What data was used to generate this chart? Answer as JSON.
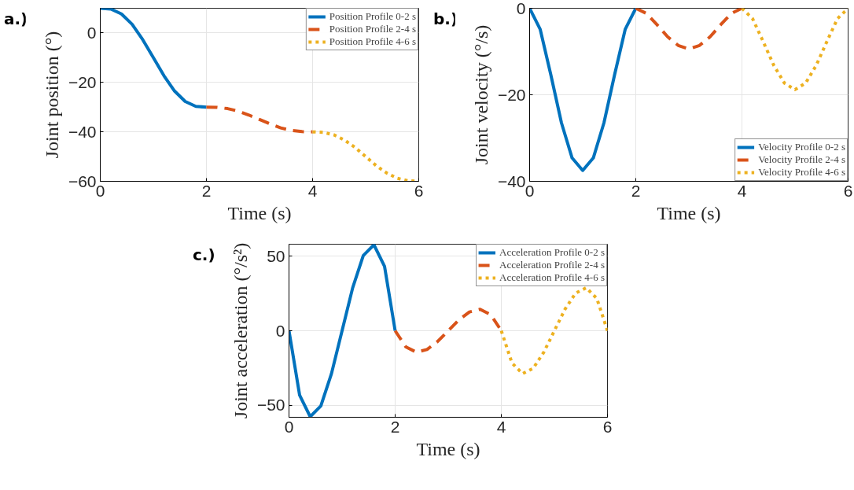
{
  "chart_data": [
    {
      "type": "line",
      "xlabel": "Time (s)",
      "ylabel": "Joint position (°)",
      "annotations": [
        "a.)"
      ],
      "xlim": [
        0,
        6
      ],
      "xticks": [
        0,
        2,
        4,
        6
      ],
      "ylim": [
        -60,
        10
      ],
      "yticks": [
        -60,
        -40,
        -20,
        0
      ],
      "grid": true,
      "legend": "top right",
      "series": [
        {
          "name": "Position Profile 0-2 s",
          "color": "#0072bd",
          "line_style": "solid",
          "x": [
            0,
            0.2,
            0.4,
            0.6,
            0.8,
            1.0,
            1.2,
            1.4,
            1.6,
            1.8,
            2.0
          ],
          "values": [
            10,
            9.7,
            7.7,
            3.5,
            -2.7,
            -10,
            -17.3,
            -23.5,
            -27.7,
            -29.7,
            -30
          ]
        },
        {
          "name": "Position Profile 2-4 s",
          "color": "#d95319",
          "line_style": "dashed",
          "x": [
            2.0,
            2.2,
            2.4,
            2.6,
            2.8,
            3.0,
            3.2,
            3.4,
            3.6,
            3.8,
            4.0
          ],
          "values": [
            -30,
            -30.1,
            -30.6,
            -31.6,
            -33.2,
            -35,
            -36.8,
            -38.4,
            -39.4,
            -39.9,
            -40
          ]
        },
        {
          "name": "Position Profile 4-6 s",
          "color": "#edb120",
          "line_style": "dotted",
          "x": [
            4.0,
            4.2,
            4.4,
            4.6,
            4.8,
            5.0,
            5.2,
            5.4,
            5.6,
            5.8,
            6.0
          ],
          "values": [
            -40,
            -40.2,
            -41.2,
            -43.3,
            -46.3,
            -50,
            -53.7,
            -56.7,
            -58.8,
            -59.8,
            -60
          ]
        }
      ]
    },
    {
      "type": "line",
      "xlabel": "Time (s)",
      "ylabel": "Joint velocity (°/s)",
      "annotations": [
        "b.)"
      ],
      "xlim": [
        0,
        6
      ],
      "xticks": [
        0,
        2,
        4,
        6
      ],
      "ylim": [
        -40,
        0
      ],
      "yticks": [
        -40,
        -20,
        0
      ],
      "grid": true,
      "legend": "bottom right",
      "series": [
        {
          "name": "Velocity Profile 0-2 s",
          "color": "#0072bd",
          "line_style": "solid",
          "x": [
            0,
            0.2,
            0.4,
            0.6,
            0.8,
            1.0,
            1.2,
            1.4,
            1.6,
            1.8,
            2.0
          ],
          "values": [
            0,
            -4.9,
            -15.4,
            -26.5,
            -34.6,
            -37.5,
            -34.6,
            -26.5,
            -15.4,
            -4.9,
            0
          ]
        },
        {
          "name": "Velocity Profile 2-4 s",
          "color": "#d95319",
          "line_style": "dashed",
          "x": [
            2.0,
            2.2,
            2.4,
            2.6,
            2.8,
            3.0,
            3.2,
            3.4,
            3.6,
            3.8,
            4.0
          ],
          "values": [
            0,
            -1.2,
            -3.8,
            -6.6,
            -8.6,
            -9.4,
            -8.6,
            -6.6,
            -3.8,
            -1.2,
            0
          ]
        },
        {
          "name": "Velocity Profile 4-6 s",
          "color": "#edb120",
          "line_style": "dotted",
          "x": [
            4.0,
            4.2,
            4.4,
            4.6,
            4.8,
            5.0,
            5.2,
            5.4,
            5.6,
            5.8,
            6.0
          ],
          "values": [
            0,
            -2.4,
            -7.7,
            -13.2,
            -17.3,
            -18.8,
            -17.3,
            -13.2,
            -7.7,
            -2.4,
            0
          ]
        }
      ]
    },
    {
      "type": "line",
      "xlabel": "Time (s)",
      "ylabel": "Joint acceleration (°/s²)",
      "annotations": [
        "c.)"
      ],
      "xlim": [
        0,
        6
      ],
      "xticks": [
        0,
        2,
        4,
        6
      ],
      "ylim": [
        -58,
        58
      ],
      "yticks": [
        -50,
        0,
        50
      ],
      "grid": true,
      "legend": "top right",
      "series": [
        {
          "name": "Acceleration Profile 0-2 s",
          "color": "#0072bd",
          "line_style": "solid",
          "x": [
            0,
            0.2,
            0.4,
            0.6,
            0.8,
            1.0,
            1.2,
            1.4,
            1.6,
            1.8,
            2.0
          ],
          "values": [
            0,
            -43.2,
            -57.6,
            -50.4,
            -28.8,
            0,
            28.8,
            50.4,
            57.6,
            43.2,
            0
          ]
        },
        {
          "name": "Acceleration Profile 2-4 s",
          "color": "#d95319",
          "line_style": "dashed",
          "x": [
            2.0,
            2.2,
            2.4,
            2.6,
            2.8,
            3.0,
            3.2,
            3.4,
            3.6,
            3.8,
            4.0
          ],
          "values": [
            0,
            -10.8,
            -14.4,
            -12.6,
            -7.2,
            0,
            7.2,
            12.6,
            14.4,
            10.8,
            0
          ]
        },
        {
          "name": "Acceleration Profile 4-6 s",
          "color": "#edb120",
          "line_style": "dotted",
          "x": [
            4.0,
            4.2,
            4.4,
            4.6,
            4.8,
            5.0,
            5.2,
            5.4,
            5.6,
            5.8,
            6.0
          ],
          "values": [
            0,
            -21.6,
            -28.8,
            -25.2,
            -14.4,
            0,
            14.4,
            25.2,
            28.8,
            21.6,
            0
          ]
        }
      ]
    }
  ]
}
